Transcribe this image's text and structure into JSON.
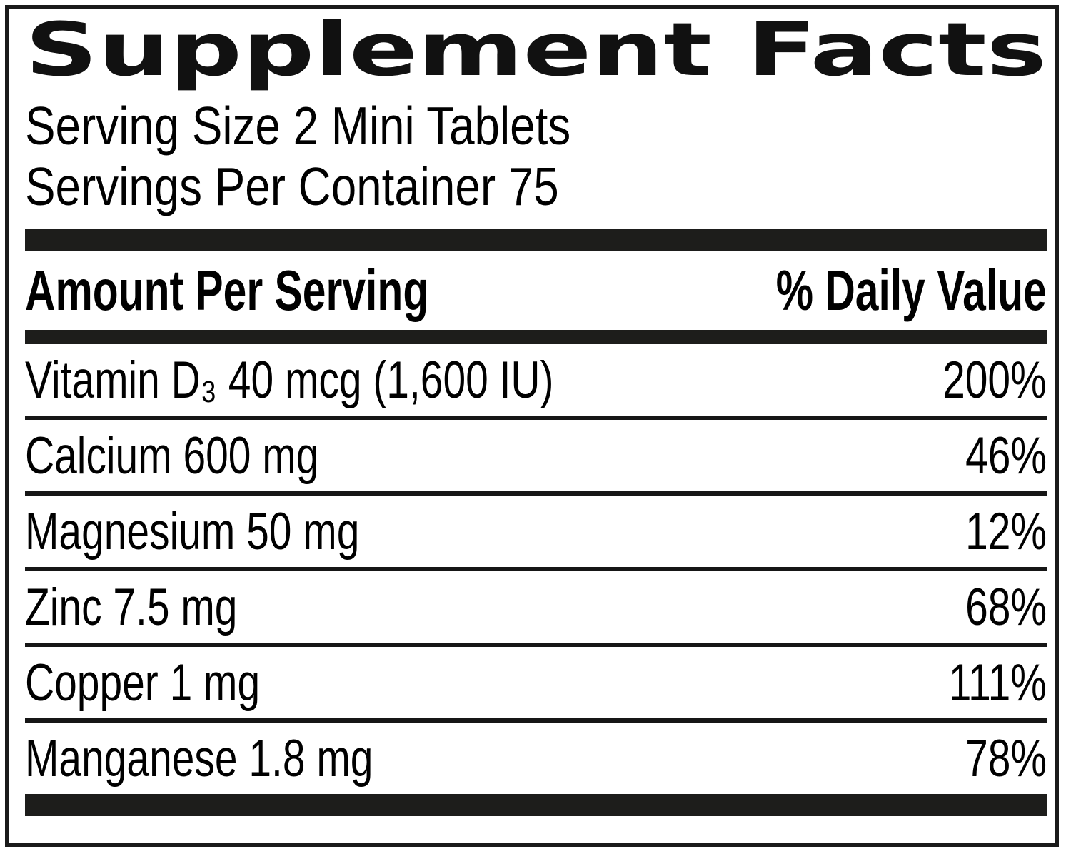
{
  "label": {
    "title": "Supplement Facts",
    "serving_size": "Serving Size 2 Mini Tablets",
    "servings_per_container": "Servings Per Container 75",
    "columns": {
      "amount": "Amount Per Serving",
      "daily_value": "% Daily Value"
    },
    "rows": [
      {
        "name": "Vitamin D₃ 40 mcg (1,600 IU)",
        "daily_value": "200%"
      },
      {
        "name": "Calcium 600 mg",
        "daily_value": "46%"
      },
      {
        "name": "Magnesium 50 mg",
        "daily_value": "12%"
      },
      {
        "name": "Zinc 7.5 mg",
        "daily_value": "68%"
      },
      {
        "name": "Copper 1 mg",
        "daily_value": "111%"
      },
      {
        "name": "Manganese 1.8 mg",
        "daily_value": "78%"
      }
    ],
    "colors": {
      "ink": "#000000",
      "bar": "#1d1d1b",
      "background": "#ffffff"
    }
  }
}
